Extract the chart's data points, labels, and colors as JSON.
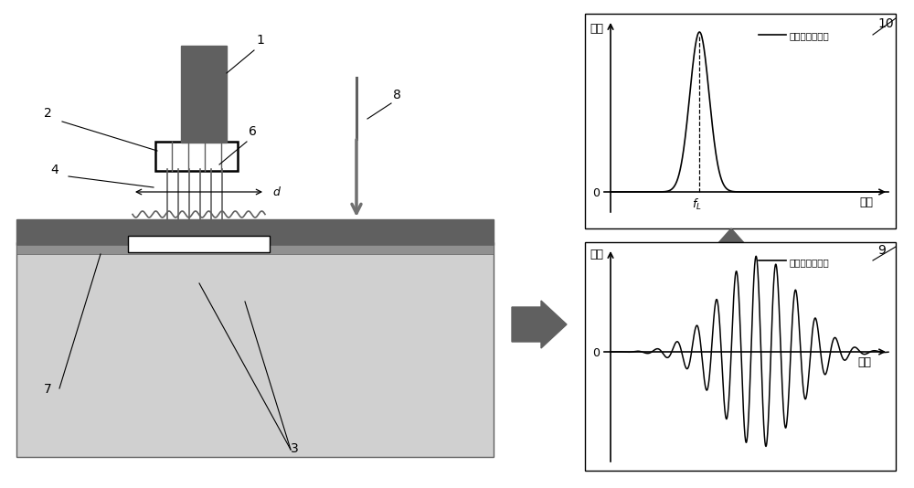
{
  "fig_width": 10.0,
  "fig_height": 5.34,
  "bg_color": "#ffffff",
  "dark_gray": "#606060",
  "medium_gray": "#888888",
  "light_gray_coat": "#555555",
  "substrate_color": "#d0d0d0",
  "coat_dark": "#606060",
  "coat_mid": "#909090",
  "white": "#ffffff",
  "black": "#000000",
  "arrow_gray": "#707070",
  "freq_legend": "兰纳波频域信号",
  "time_legend": "瑞利波时域信号",
  "amplitude_label": "幅値",
  "frequency_label": "频率",
  "time_label": "时间"
}
